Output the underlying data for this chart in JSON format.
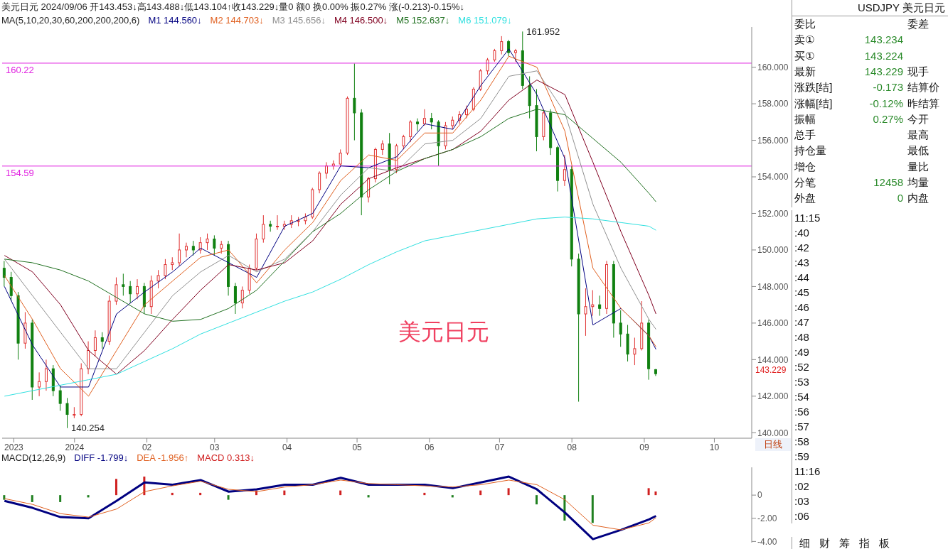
{
  "chart_data": [
    {
      "type": "candlestick",
      "title": "美元日元 2024/09/06 开143.453↓高143.488↓低143.104↑收143.229↓量0 额0 换0.00% 振0.27% 涨(-0.213)-0.15%↓",
      "legend_title": "MA(5,10,20,30,60,200,200,200,6)",
      "legend": "top left",
      "x": [
        "2023-12-02",
        "2023-12-05",
        "2023-12-08",
        "2023-12-11",
        "2023-12-14",
        "2023-12-17",
        "2023-12-20",
        "2023-12-23",
        "2023-12-26",
        "2023-12-29",
        "2024-01-01",
        "2024-01-04",
        "2024-01-07",
        "2024-01-10",
        "2024-01-13",
        "2024-01-16",
        "2024-01-19",
        "2024-01-22",
        "2024-01-25",
        "2024-01-28",
        "2024-01-31",
        "2024-02-03",
        "2024-02-06",
        "2024-02-09",
        "2024-02-12",
        "2024-02-15",
        "2024-02-18",
        "2024-02-21",
        "2024-02-24",
        "2024-02-27",
        "2024-03-01",
        "2024-03-04",
        "2024-03-07",
        "2024-03-10",
        "2024-03-13",
        "2024-03-16",
        "2024-03-19",
        "2024-03-22",
        "2024-03-25",
        "2024-03-28",
        "2024-03-31",
        "2024-04-03",
        "2024-04-06",
        "2024-04-09",
        "2024-04-12",
        "2024-04-15",
        "2024-04-18",
        "2024-04-21",
        "2024-04-24",
        "2024-04-27",
        "2024-04-30",
        "2024-05-03",
        "2024-05-06",
        "2024-05-09",
        "2024-05-12",
        "2024-05-15",
        "2024-05-18",
        "2024-05-21",
        "2024-05-24",
        "2024-05-27",
        "2024-05-30",
        "2024-06-02",
        "2024-06-05",
        "2024-06-08",
        "2024-06-11",
        "2024-06-14",
        "2024-06-17",
        "2024-06-20",
        "2024-06-23",
        "2024-06-26",
        "2024-06-29",
        "2024-07-02",
        "2024-07-05",
        "2024-07-08",
        "2024-07-11",
        "2024-07-14",
        "2024-07-17",
        "2024-07-20",
        "2024-07-23",
        "2024-07-26",
        "2024-07-29",
        "2024-08-01",
        "2024-08-04",
        "2024-08-07",
        "2024-08-10",
        "2024-08-13",
        "2024-08-16",
        "2024-08-19",
        "2024-08-22",
        "2024-08-25",
        "2024-08-28",
        "2024-08-31",
        "2024-09-03",
        "2024-09-06"
      ],
      "ohlc": [
        [
          149.0,
          149.4,
          148.0,
          148.5
        ],
        [
          148.5,
          148.8,
          147.2,
          147.5
        ],
        [
          147.5,
          147.7,
          144.0,
          144.9
        ],
        [
          144.9,
          146.6,
          144.6,
          146.0
        ],
        [
          146.0,
          146.2,
          141.8,
          142.5
        ],
        [
          142.5,
          143.3,
          142.0,
          142.8
        ],
        [
          142.8,
          144.0,
          142.3,
          143.5
        ],
        [
          143.5,
          143.7,
          142.0,
          142.3
        ],
        [
          142.3,
          142.6,
          141.2,
          141.6
        ],
        [
          141.6,
          141.9,
          140.254,
          141.0
        ],
        [
          141.0,
          141.4,
          140.8,
          141.0
        ],
        [
          141.0,
          143.8,
          140.9,
          143.5
        ],
        [
          143.5,
          145.0,
          143.2,
          144.5
        ],
        [
          144.5,
          145.6,
          144.2,
          145.2
        ],
        [
          145.2,
          145.5,
          144.6,
          145.0
        ],
        [
          145.0,
          147.5,
          144.8,
          147.2
        ],
        [
          147.2,
          148.5,
          147.0,
          148.1
        ],
        [
          148.1,
          148.7,
          147.5,
          148.0
        ],
        [
          148.0,
          148.3,
          147.1,
          147.6
        ],
        [
          147.6,
          148.4,
          147.3,
          148.0
        ],
        [
          148.0,
          148.2,
          146.5,
          146.9
        ],
        [
          146.9,
          148.6,
          146.5,
          148.3
        ],
        [
          148.3,
          148.9,
          147.9,
          148.6
        ],
        [
          148.6,
          149.5,
          148.4,
          149.2
        ],
        [
          149.2,
          149.6,
          148.9,
          149.3
        ],
        [
          149.3,
          150.9,
          149.1,
          150.0
        ],
        [
          150.0,
          150.4,
          149.6,
          150.2
        ],
        [
          150.2,
          150.5,
          149.7,
          150.0
        ],
        [
          150.0,
          150.7,
          149.8,
          150.4
        ],
        [
          150.4,
          150.9,
          150.0,
          150.6
        ],
        [
          150.6,
          150.8,
          149.7,
          150.1
        ],
        [
          150.1,
          150.5,
          149.8,
          150.3
        ],
        [
          150.3,
          150.5,
          147.5,
          148.0
        ],
        [
          148.0,
          148.2,
          146.5,
          147.1
        ],
        [
          147.1,
          148.0,
          146.8,
          147.8
        ],
        [
          147.8,
          149.2,
          147.6,
          149.0
        ],
        [
          149.0,
          150.9,
          148.9,
          150.6
        ],
        [
          150.6,
          151.9,
          150.4,
          151.4
        ],
        [
          151.4,
          151.6,
          151.0,
          151.3
        ],
        [
          151.3,
          151.9,
          151.1,
          151.3
        ],
        [
          151.3,
          151.6,
          151.1,
          151.4
        ],
        [
          151.4,
          151.9,
          151.2,
          151.6
        ],
        [
          151.6,
          151.8,
          151.3,
          151.6
        ],
        [
          151.6,
          152.0,
          151.4,
          151.8
        ],
        [
          151.8,
          153.4,
          151.7,
          153.3
        ],
        [
          153.3,
          154.3,
          153.1,
          154.2
        ],
        [
          154.2,
          154.8,
          153.9,
          154.6
        ],
        [
          154.6,
          154.9,
          154.4,
          154.7
        ],
        [
          154.7,
          155.5,
          154.6,
          155.3
        ],
        [
          155.3,
          158.4,
          155.2,
          158.3
        ],
        [
          158.3,
          160.2,
          156.0,
          157.5
        ],
        [
          157.5,
          157.7,
          151.9,
          152.9
        ],
        [
          152.9,
          154.0,
          152.6,
          153.9
        ],
        [
          153.9,
          155.6,
          153.7,
          155.5
        ],
        [
          155.5,
          156.0,
          155.2,
          155.8
        ],
        [
          155.8,
          156.4,
          153.6,
          154.4
        ],
        [
          154.4,
          155.8,
          154.2,
          155.7
        ],
        [
          155.7,
          156.3,
          155.5,
          156.2
        ],
        [
          156.2,
          157.1,
          155.9,
          157.0
        ],
        [
          157.0,
          157.2,
          156.5,
          156.9
        ],
        [
          156.9,
          157.7,
          156.8,
          157.2
        ],
        [
          157.2,
          157.5,
          156.6,
          157.0
        ],
        [
          157.0,
          157.1,
          154.6,
          155.7
        ],
        [
          155.7,
          157.0,
          155.5,
          156.8
        ],
        [
          156.8,
          157.3,
          156.6,
          157.1
        ],
        [
          157.1,
          157.6,
          156.9,
          157.4
        ],
        [
          157.4,
          157.9,
          157.2,
          157.7
        ],
        [
          157.7,
          158.9,
          157.6,
          158.8
        ],
        [
          158.8,
          159.9,
          158.7,
          159.8
        ],
        [
          159.8,
          160.5,
          159.6,
          160.4
        ],
        [
          160.4,
          161.0,
          160.3,
          160.9
        ],
        [
          160.9,
          161.7,
          160.7,
          161.4
        ],
        [
          161.4,
          161.5,
          160.6,
          160.8
        ],
        [
          160.8,
          161.0,
          160.3,
          160.9
        ],
        [
          160.9,
          161.952,
          158.8,
          159.0
        ],
        [
          159.0,
          159.5,
          157.2,
          157.9
        ],
        [
          157.9,
          158.8,
          155.4,
          156.2
        ],
        [
          156.2,
          157.7,
          156.0,
          157.5
        ],
        [
          157.5,
          157.7,
          155.2,
          155.6
        ],
        [
          155.6,
          155.7,
          153.2,
          153.8
        ],
        [
          153.8,
          155.2,
          153.5,
          154.4
        ],
        [
          154.4,
          154.6,
          149.1,
          149.5
        ],
        [
          149.5,
          149.8,
          141.7,
          146.5
        ],
        [
          146.5,
          147.9,
          145.3,
          146.9
        ],
        [
          146.9,
          147.8,
          146.4,
          147.0
        ],
        [
          147.0,
          147.5,
          146.4,
          146.8
        ],
        [
          146.8,
          149.4,
          146.5,
          149.2
        ],
        [
          149.2,
          149.4,
          145.2,
          146.0
        ],
        [
          146.0,
          146.7,
          144.7,
          145.4
        ],
        [
          145.4,
          145.9,
          143.9,
          144.3
        ],
        [
          144.3,
          145.2,
          143.7,
          144.6
        ],
        [
          144.6,
          147.2,
          144.5,
          146.0
        ],
        [
          146.0,
          146.2,
          142.9,
          143.5
        ],
        [
          143.453,
          143.488,
          143.104,
          143.229
        ]
      ],
      "series": [
        {
          "type": "line",
          "name": "M1 144.560↓",
          "color": "#000080",
          "x": [
            "2023-12-02",
            "2023-12-14",
            "2023-12-26",
            "2024-01-07",
            "2024-01-19",
            "2024-01-31",
            "2024-02-12",
            "2024-02-24",
            "2024-03-07",
            "2024-03-19",
            "2024-03-31",
            "2024-04-12",
            "2024-04-24",
            "2024-05-06",
            "2024-05-18",
            "2024-05-30",
            "2024-06-11",
            "2024-06-23",
            "2024-07-05",
            "2024-07-17",
            "2024-07-29",
            "2024-08-10",
            "2024-08-22",
            "2024-09-03",
            "2024-09-06"
          ],
          "values": [
            148.0,
            144.8,
            142.5,
            142.5,
            146.5,
            147.7,
            148.8,
            150.1,
            149.3,
            148.5,
            151.3,
            152.0,
            154.6,
            154.5,
            155.1,
            156.9,
            156.6,
            159.0,
            161.0,
            158.5,
            155.0,
            145.9,
            146.8,
            145.3,
            144.56
          ]
        },
        {
          "type": "line",
          "name": "M2 144.703↓",
          "color": "#e06020",
          "x": [
            "2023-12-02",
            "2023-12-14",
            "2023-12-26",
            "2024-01-07",
            "2024-01-19",
            "2024-01-31",
            "2024-02-12",
            "2024-02-24",
            "2024-03-07",
            "2024-03-19",
            "2024-03-31",
            "2024-04-12",
            "2024-04-24",
            "2024-05-06",
            "2024-05-18",
            "2024-05-30",
            "2024-06-11",
            "2024-06-23",
            "2024-07-05",
            "2024-07-17",
            "2024-07-29",
            "2024-08-10",
            "2024-08-22",
            "2024-09-03",
            "2024-09-06"
          ],
          "values": [
            148.6,
            146.2,
            143.5,
            142.0,
            144.5,
            147.0,
            148.3,
            149.6,
            150.0,
            148.2,
            150.0,
            151.5,
            153.8,
            155.2,
            154.9,
            156.4,
            156.4,
            158.2,
            160.6,
            160.0,
            156.5,
            149.0,
            146.8,
            145.3,
            144.703
          ]
        },
        {
          "type": "line",
          "name": "M3 145.656↓",
          "color": "#909090",
          "x": [
            "2023-12-02",
            "2023-12-14",
            "2023-12-26",
            "2024-01-07",
            "2024-01-19",
            "2024-01-31",
            "2024-02-12",
            "2024-02-24",
            "2024-03-07",
            "2024-03-19",
            "2024-03-31",
            "2024-04-12",
            "2024-04-24",
            "2024-05-06",
            "2024-05-18",
            "2024-05-30",
            "2024-06-11",
            "2024-06-23",
            "2024-07-05",
            "2024-07-17",
            "2024-07-29",
            "2024-08-10",
            "2024-08-22",
            "2024-09-03",
            "2024-09-06"
          ],
          "values": [
            149.5,
            147.5,
            145.5,
            143.5,
            143.5,
            145.5,
            147.5,
            148.8,
            149.7,
            148.8,
            149.5,
            151.0,
            153.0,
            154.5,
            154.3,
            155.8,
            156.0,
            157.2,
            159.5,
            159.8,
            157.5,
            152.5,
            149.0,
            146.2,
            145.656
          ]
        },
        {
          "type": "line",
          "name": "M4 146.500↓",
          "color": "#800020",
          "x": [
            "2023-12-02",
            "2023-12-14",
            "2023-12-26",
            "2024-01-07",
            "2024-01-19",
            "2024-01-31",
            "2024-02-12",
            "2024-02-24",
            "2024-03-07",
            "2024-03-19",
            "2024-03-31",
            "2024-04-12",
            "2024-04-24",
            "2024-05-06",
            "2024-05-18",
            "2024-05-30",
            "2024-06-11",
            "2024-06-23",
            "2024-07-05",
            "2024-07-17",
            "2024-07-29",
            "2024-08-10",
            "2024-08-22",
            "2024-09-03",
            "2024-09-06"
          ],
          "values": [
            149.7,
            148.8,
            147.0,
            144.5,
            143.2,
            144.5,
            146.2,
            147.8,
            149.2,
            148.9,
            149.3,
            150.5,
            152.5,
            153.9,
            154.5,
            155.0,
            155.5,
            156.5,
            158.2,
            159.3,
            158.5,
            154.8,
            151.0,
            147.5,
            146.5
          ]
        },
        {
          "type": "line",
          "name": "M5 152.637↓",
          "color": "#207020",
          "x": [
            "2023-12-02",
            "2023-12-14",
            "2023-12-26",
            "2024-01-07",
            "2024-01-19",
            "2024-01-31",
            "2024-02-12",
            "2024-02-24",
            "2024-03-07",
            "2024-03-19",
            "2024-03-31",
            "2024-04-12",
            "2024-04-24",
            "2024-05-06",
            "2024-05-18",
            "2024-05-30",
            "2024-06-11",
            "2024-06-23",
            "2024-07-05",
            "2024-07-17",
            "2024-07-29",
            "2024-08-10",
            "2024-08-22",
            "2024-09-03",
            "2024-09-06"
          ],
          "values": [
            149.5,
            149.3,
            148.9,
            148.3,
            147.4,
            146.5,
            146.1,
            146.2,
            146.8,
            147.8,
            149.4,
            151.0,
            152.0,
            153.3,
            154.3,
            155.0,
            155.5,
            156.2,
            157.2,
            157.7,
            157.4,
            156.1,
            154.8,
            153.1,
            152.637
          ]
        },
        {
          "type": "line",
          "name": "M6 151.079↓",
          "color": "#30e0e0",
          "x": [
            "2023-12-02",
            "2023-12-14",
            "2023-12-26",
            "2024-01-07",
            "2024-01-19",
            "2024-01-31",
            "2024-02-12",
            "2024-02-24",
            "2024-03-07",
            "2024-03-19",
            "2024-03-31",
            "2024-04-12",
            "2024-04-24",
            "2024-05-06",
            "2024-05-18",
            "2024-05-30",
            "2024-06-11",
            "2024-06-23",
            "2024-07-05",
            "2024-07-17",
            "2024-07-29",
            "2024-08-10",
            "2024-08-22",
            "2024-09-03",
            "2024-09-06"
          ],
          "values": [
            142.0,
            142.3,
            142.6,
            142.9,
            143.2,
            143.9,
            144.6,
            145.4,
            146.0,
            146.6,
            147.2,
            147.7,
            148.4,
            149.2,
            149.9,
            150.5,
            150.8,
            151.1,
            151.4,
            151.7,
            151.8,
            151.7,
            151.5,
            151.3,
            151.079
          ]
        }
      ],
      "xlim": [
        "2023-12-01",
        "2024-10-17"
      ],
      "xticks": [
        {
          "value": "2023-12-06",
          "label": "2023"
        },
        {
          "value": "2024-01-01",
          "label": "2024"
        },
        {
          "value": "2024-02-01",
          "label": "02"
        },
        {
          "value": "2024-03-01",
          "label": "03"
        },
        {
          "value": "2024-04-01",
          "label": "04"
        },
        {
          "value": "2024-05-01",
          "label": "05"
        },
        {
          "value": "2024-06-01",
          "label": "06"
        },
        {
          "value": "2024-07-01",
          "label": "07"
        },
        {
          "value": "2024-08-01",
          "label": "08"
        },
        {
          "value": "2024-09-01",
          "label": "09"
        },
        {
          "value": "2024-10-01",
          "label": "10"
        }
      ],
      "ylim": [
        139.7,
        162.2
      ],
      "yticks": [
        {
          "value": 140,
          "label": "140.000"
        },
        {
          "value": 142,
          "label": "142.000"
        },
        {
          "value": 144,
          "label": "144.000"
        },
        {
          "value": 146,
          "label": "146.000"
        },
        {
          "value": 148,
          "label": "148.000"
        },
        {
          "value": 150,
          "label": "150.000"
        },
        {
          "value": 152,
          "label": "152.000"
        },
        {
          "value": 154,
          "label": "154.000"
        },
        {
          "value": 156,
          "label": "156.000"
        },
        {
          "value": 158,
          "label": "158.000"
        },
        {
          "value": 160,
          "label": "160.000"
        }
      ],
      "ref_lines": [
        {
          "axis": "y",
          "value": 160.22,
          "label": "160.22",
          "color": "#e020e0"
        },
        {
          "axis": "y",
          "value": 154.59,
          "label": "154.59",
          "color": "#e020e0"
        }
      ],
      "annotations": [
        "美元日元",
        {
          "text": "161.952",
          "x": "2024-07-11",
          "y": 161.952
        },
        {
          "text": "140.254",
          "x": "2023-12-29",
          "y": 140.254
        },
        "143.229",
        "日线"
      ]
    },
    {
      "type": "bar",
      "title": "MACD(12,26,9)",
      "legend": "top left",
      "tick_labels": "y",
      "x": [
        "2023-12-02",
        "2023-12-14",
        "2023-12-26",
        "2024-01-07",
        "2024-01-19",
        "2024-01-31",
        "2024-02-12",
        "2024-02-24",
        "2024-03-07",
        "2024-03-19",
        "2024-03-31",
        "2024-04-12",
        "2024-04-24",
        "2024-05-06",
        "2024-05-18",
        "2024-05-30",
        "2024-06-11",
        "2024-06-23",
        "2024-07-05",
        "2024-07-17",
        "2024-07-29",
        "2024-08-10",
        "2024-08-22",
        "2024-09-03",
        "2024-09-06"
      ],
      "series": [
        {
          "type": "line",
          "name": "DIFF -1.799↓",
          "color": "#000080",
          "values": [
            -0.5,
            -1.1,
            -1.9,
            -2.0,
            -0.5,
            1.1,
            0.9,
            1.3,
            0.3,
            0.5,
            0.9,
            0.9,
            1.5,
            0.9,
            0.9,
            0.9,
            0.6,
            1.1,
            1.6,
            0.5,
            -1.5,
            -3.8,
            -3.0,
            -2.1,
            -1.799
          ]
        },
        {
          "type": "line",
          "name": "DEA -1.956↑",
          "color": "#e06020",
          "values": [
            -0.3,
            -0.8,
            -1.6,
            -1.9,
            -1.2,
            0.3,
            0.8,
            1.2,
            0.5,
            0.3,
            0.7,
            0.9,
            1.3,
            1.0,
            0.9,
            0.8,
            0.7,
            0.9,
            1.3,
            0.9,
            -0.4,
            -2.6,
            -3.0,
            -2.4,
            -1.956
          ]
        },
        {
          "type": "bar",
          "name": "MACD 0.313↓",
          "color": "#d02020",
          "values": [
            -0.4,
            -0.6,
            -0.6,
            -0.2,
            1.4,
            1.6,
            0.2,
            0.2,
            -0.4,
            0.4,
            0.4,
            0,
            0.4,
            -0.2,
            0,
            0.2,
            -0.2,
            0.4,
            0.6,
            -0.8,
            -2.2,
            -2.4,
            0,
            0.6,
            0.313
          ],
          "colors": [
            "#208020",
            "#208020",
            "#208020",
            "#208020",
            "#d02020",
            "#d02020",
            "#d02020",
            "#d02020",
            "#208020",
            "#d02020",
            "#d02020",
            "#d02020",
            "#d02020",
            "#208020",
            "#d02020",
            "#d02020",
            "#208020",
            "#d02020",
            "#d02020",
            "#208020",
            "#208020",
            "#208020",
            "#d02020",
            "#d02020",
            "#d02020"
          ]
        }
      ],
      "xlim": [
        "2023-12-01",
        "2024-10-17"
      ],
      "ylim": [
        -4.1,
        2.4
      ],
      "yticks": [
        {
          "value": -4,
          "label": "-4.00"
        },
        {
          "value": -2,
          "label": "-2.00"
        },
        0
      ]
    },
    {
      "type": "other",
      "title": "USDJPY 美元日元",
      "annotations": [
        "委比",
        "卖①",
        "买①",
        "最新",
        "涨跌[结]",
        "涨幅[结]",
        "振幅",
        "总手",
        "持仓量",
        "增仓",
        "分笔",
        "外盘"
      ]
    },
    {
      "type": "other",
      "annotations": [
        "11:15",
        ":40",
        ":42",
        ":43",
        ":44",
        ":45",
        ":46",
        ":47",
        ":48",
        ":49",
        ":52",
        ":53",
        ":54",
        ":56",
        ":57",
        ":58",
        ":59",
        "11:16",
        ":02",
        ":03",
        ":06"
      ]
    },
    {
      "type": "other",
      "annotations": [
        "细",
        "财",
        "筹",
        "指",
        "板"
      ]
    },
    {
      "type": "other",
      "annotations": [
        "143.234",
        "143.224",
        "143.229",
        "-0.173",
        "-0.12%",
        "0.27%",
        "12458",
        "0"
      ]
    },
    {
      "type": "other",
      "annotations": [
        "委差",
        "现手",
        "结算价",
        "昨结算",
        "今开",
        "最高",
        "最低",
        "量比",
        "均量",
        "内盘"
      ]
    }
  ]
}
